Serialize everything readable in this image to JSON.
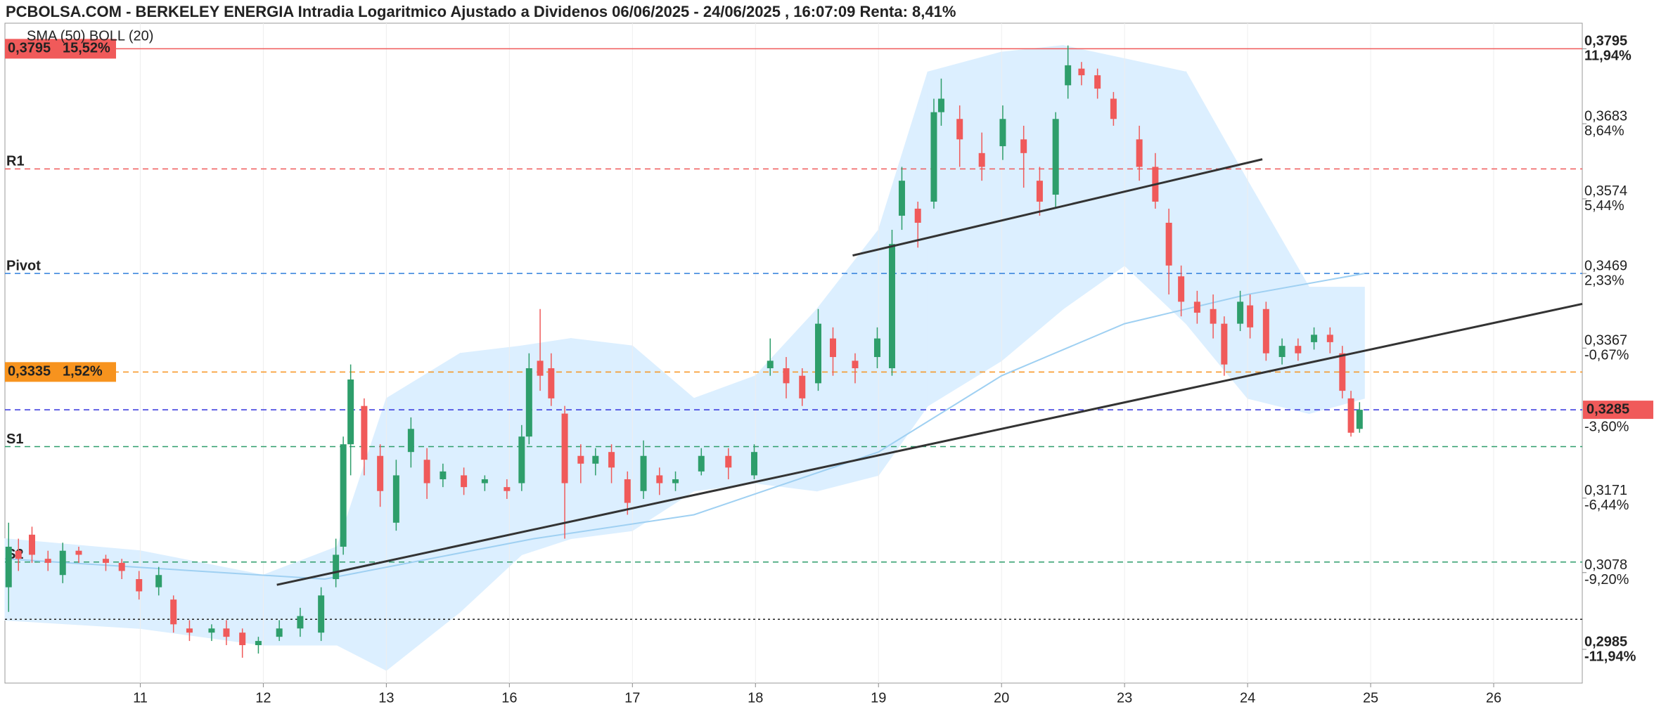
{
  "chart_data": {
    "type": "candlestick",
    "title": "PCBOLSA.COM - BERKELEY ENERGIA Intradia Logaritmico Ajustado a Dividenos 06/06/2025 - 24/06/2025 , 16:07:09 Renta: 8,41%",
    "indicator_label": "SMA (50)  BOLL (20)",
    "log_scale": true,
    "grid": true,
    "up_color": "#2e9e6b",
    "down_color": "#f05a5a",
    "xlim": [
      -1.1,
      11.72
    ],
    "xticks": [
      {
        "value": 0,
        "label": "11"
      },
      {
        "value": 1,
        "label": "12"
      },
      {
        "value": 2,
        "label": "13"
      },
      {
        "value": 3,
        "label": "16"
      },
      {
        "value": 4,
        "label": "17"
      },
      {
        "value": 5,
        "label": "18"
      },
      {
        "value": 6,
        "label": "19"
      },
      {
        "value": 7,
        "label": "20"
      },
      {
        "value": 8,
        "label": "23"
      },
      {
        "value": 9,
        "label": "24"
      },
      {
        "value": 10,
        "label": "25"
      },
      {
        "value": 11,
        "label": "26"
      }
    ],
    "ylim": [
      0.2945,
      0.3834
    ],
    "yticks": [
      {
        "value": 0.3795,
        "label": "0,3795"
      },
      {
        "value": 0.3683,
        "label": "0,3683"
      },
      {
        "value": 0.3574,
        "label": "0,3574"
      },
      {
        "value": 0.3469,
        "label": "0,3469"
      },
      {
        "value": 0.3367,
        "label": "0,3367"
      },
      {
        "value": 0.3171,
        "label": "0,3171"
      },
      {
        "value": 0.3078,
        "label": "0,3078"
      },
      {
        "value": 0.2985,
        "label": "0,2985"
      }
    ],
    "ytick_changes": [
      {
        "value": 11.94,
        "label": "11,94%"
      },
      {
        "value": 8.64,
        "label": "8,64%"
      },
      {
        "value": 5.44,
        "label": "5,44%"
      },
      {
        "value": 2.33,
        "label": "2,33%"
      },
      {
        "value": -0.67,
        "label": "-0,67%"
      },
      {
        "value": -6.44,
        "label": "-6,44%"
      },
      {
        "value": -9.2,
        "label": "-9,20%"
      },
      {
        "value": -11.94,
        "label": "-11,94%"
      }
    ],
    "last_price": {
      "value": 0.3285,
      "label": "0,3285",
      "change": {
        "value": -3.6,
        "label": "-3,60%"
      },
      "color": "#f05a5a"
    },
    "levels": [
      {
        "name": "R1",
        "value": 0.3617,
        "color": "#f05a5a"
      },
      {
        "name": "Pivot",
        "value": 0.3469,
        "color": "#2f7fdc"
      },
      {
        "name": "S1",
        "value": 0.3237,
        "color": "#2e9e6b"
      },
      {
        "name": "S2",
        "value": 0.3091,
        "color": "#2e9e6b"
      }
    ],
    "price_lines": [
      {
        "value": 0.3795,
        "color": "#f05a5a",
        "style": "solid",
        "label": "0,3795",
        "change": {
          "value": 15.52,
          "label": "15,52%"
        }
      },
      {
        "value": 0.3335,
        "color": "#f7931e",
        "style": "dashed",
        "label": "0,3335",
        "change": {
          "value": 1.52,
          "label": "1,52%"
        }
      },
      {
        "value": 0.3285,
        "color": "#3333dd",
        "style": "dashed"
      },
      {
        "value": 0.3021,
        "color": "#222222",
        "style": "dotted"
      }
    ],
    "trendlines": [
      {
        "x": [
          1.11,
          11.72
        ],
        "y": [
          0.3063,
          0.3427
        ]
      },
      {
        "x": [
          5.79,
          9.12
        ],
        "y": [
          0.3494,
          0.3631
        ]
      }
    ],
    "bollinger": {
      "x": [
        -1.1,
        0,
        1,
        1.6,
        2,
        2.6,
        3.1,
        3.5,
        4,
        4.5,
        5,
        5.5,
        6,
        6.4,
        7,
        7.5,
        8,
        8.5,
        9,
        9.5,
        9.95
      ],
      "upper": [
        0.312,
        0.3105,
        0.3075,
        0.311,
        0.33,
        0.336,
        0.337,
        0.338,
        0.337,
        0.33,
        0.333,
        0.342,
        0.353,
        0.376,
        0.379,
        0.38,
        0.378,
        0.376,
        0.36,
        0.345,
        0.345
      ],
      "lower": [
        0.302,
        0.301,
        0.299,
        0.299,
        0.296,
        0.303,
        0.31,
        0.312,
        0.313,
        0.318,
        0.319,
        0.318,
        0.32,
        0.329,
        0.335,
        0.342,
        0.348,
        0.34,
        0.33,
        0.328,
        0.33
      ],
      "color": "#dcefff"
    },
    "sma": {
      "x": [
        -1.1,
        1.5,
        3.2,
        4.5,
        6,
        7,
        8,
        9,
        9.95
      ],
      "values": [
        0.3095,
        0.307,
        0.312,
        0.315,
        0.323,
        0.333,
        0.34,
        0.344,
        0.3469
      ],
      "color": "#9fd0f2"
    },
    "candles": {
      "x": [
        -1.07,
        -0.99,
        -0.88,
        -0.75,
        -0.63,
        -0.5,
        -0.28,
        -0.15,
        -0.01,
        0.15,
        0.27,
        0.4,
        0.58,
        0.7,
        0.83,
        0.96,
        1.13,
        1.3,
        1.47,
        1.59,
        1.65,
        1.71,
        1.82,
        1.95,
        2.08,
        2.2,
        2.33,
        2.46,
        2.63,
        2.8,
        2.98,
        3.1,
        3.16,
        3.25,
        3.34,
        3.45,
        3.58,
        3.7,
        3.83,
        3.96,
        4.09,
        4.22,
        4.35,
        4.56,
        4.78,
        4.99,
        5.12,
        5.25,
        5.38,
        5.51,
        5.63,
        5.81,
        5.99,
        6.11,
        6.19,
        6.32,
        6.45,
        6.51,
        6.66,
        6.84,
        7.01,
        7.18,
        7.31,
        7.44,
        7.54,
        7.65,
        7.78,
        7.91,
        8.12,
        8.25,
        8.36,
        8.46,
        8.59,
        8.72,
        8.81,
        8.94,
        9.02,
        9.15,
        9.28,
        9.41,
        9.54,
        9.67,
        9.77,
        9.84,
        9.91
      ],
      "open": [
        0.306,
        0.3105,
        0.3125,
        0.3095,
        0.3075,
        0.3105,
        0.3095,
        0.309,
        0.307,
        0.306,
        0.3045,
        0.301,
        0.3005,
        0.301,
        0.3005,
        0.299,
        0.3,
        0.301,
        0.3005,
        0.307,
        0.311,
        0.324,
        0.329,
        0.3225,
        0.314,
        0.323,
        0.322,
        0.3195,
        0.32,
        0.319,
        0.3185,
        0.319,
        0.325,
        0.335,
        0.334,
        0.328,
        0.3225,
        0.3215,
        0.323,
        0.3195,
        0.318,
        0.32,
        0.319,
        0.3205,
        0.3225,
        0.32,
        0.334,
        0.334,
        0.333,
        0.332,
        0.338,
        0.335,
        0.3355,
        0.334,
        0.355,
        0.356,
        0.357,
        0.37,
        0.369,
        0.364,
        0.365,
        0.366,
        0.36,
        0.358,
        0.374,
        0.3765,
        0.3755,
        0.372,
        0.366,
        0.362,
        0.354,
        0.3465,
        0.343,
        0.342,
        0.34,
        0.34,
        0.3425,
        0.342,
        0.3355,
        0.337,
        0.3375,
        0.3385,
        0.336,
        0.33,
        0.326
      ],
      "high": [
        0.314,
        0.312,
        0.3135,
        0.3105,
        0.3115,
        0.311,
        0.31,
        0.3095,
        0.308,
        0.3085,
        0.305,
        0.302,
        0.3015,
        0.302,
        0.301,
        0.3,
        0.302,
        0.3035,
        0.306,
        0.312,
        0.325,
        0.3345,
        0.33,
        0.324,
        0.322,
        0.3275,
        0.3235,
        0.3215,
        0.321,
        0.32,
        0.3195,
        0.3265,
        0.336,
        0.342,
        0.336,
        0.329,
        0.324,
        0.3235,
        0.324,
        0.3205,
        0.3245,
        0.321,
        0.3205,
        0.3235,
        0.3235,
        0.324,
        0.338,
        0.3355,
        0.334,
        0.342,
        0.3395,
        0.336,
        0.3395,
        0.353,
        0.362,
        0.357,
        0.372,
        0.375,
        0.371,
        0.367,
        0.371,
        0.368,
        0.362,
        0.37,
        0.38,
        0.3775,
        0.3765,
        0.373,
        0.368,
        0.364,
        0.356,
        0.348,
        0.3445,
        0.344,
        0.341,
        0.3445,
        0.344,
        0.343,
        0.338,
        0.338,
        0.3395,
        0.3395,
        0.337,
        0.331,
        0.3295
      ],
      "low": [
        0.303,
        0.308,
        0.309,
        0.308,
        0.3065,
        0.309,
        0.308,
        0.307,
        0.3045,
        0.305,
        0.3005,
        0.2995,
        0.2995,
        0.299,
        0.2975,
        0.298,
        0.2995,
        0.3,
        0.2995,
        0.306,
        0.31,
        0.32,
        0.32,
        0.316,
        0.313,
        0.321,
        0.317,
        0.3185,
        0.3175,
        0.318,
        0.317,
        0.318,
        0.324,
        0.331,
        0.329,
        0.312,
        0.319,
        0.32,
        0.319,
        0.315,
        0.317,
        0.3175,
        0.318,
        0.32,
        0.3195,
        0.3195,
        0.333,
        0.33,
        0.329,
        0.331,
        0.333,
        0.332,
        0.334,
        0.333,
        0.353,
        0.3505,
        0.356,
        0.368,
        0.362,
        0.36,
        0.363,
        0.359,
        0.355,
        0.356,
        0.372,
        0.374,
        0.372,
        0.368,
        0.36,
        0.356,
        0.344,
        0.341,
        0.34,
        0.338,
        0.333,
        0.339,
        0.338,
        0.335,
        0.3345,
        0.335,
        0.3365,
        0.336,
        0.33,
        0.325,
        0.3255
      ],
      "close": [
        0.311,
        0.3095,
        0.31,
        0.309,
        0.3105,
        0.31,
        0.309,
        0.308,
        0.3055,
        0.3075,
        0.3015,
        0.3005,
        0.301,
        0.3,
        0.299,
        0.2995,
        0.301,
        0.3025,
        0.305,
        0.31,
        0.324,
        0.3325,
        0.322,
        0.318,
        0.32,
        0.326,
        0.319,
        0.3205,
        0.3185,
        0.3195,
        0.318,
        0.325,
        0.334,
        0.333,
        0.33,
        0.319,
        0.3215,
        0.3225,
        0.321,
        0.3165,
        0.3225,
        0.319,
        0.3195,
        0.3225,
        0.321,
        0.323,
        0.335,
        0.332,
        0.33,
        0.34,
        0.3355,
        0.334,
        0.338,
        0.351,
        0.36,
        0.354,
        0.37,
        0.372,
        0.366,
        0.362,
        0.369,
        0.364,
        0.357,
        0.369,
        0.377,
        0.3755,
        0.3735,
        0.369,
        0.362,
        0.357,
        0.348,
        0.343,
        0.3415,
        0.34,
        0.3345,
        0.343,
        0.3395,
        0.336,
        0.337,
        0.336,
        0.3385,
        0.3375,
        0.331,
        0.3255,
        0.3285
      ]
    }
  }
}
